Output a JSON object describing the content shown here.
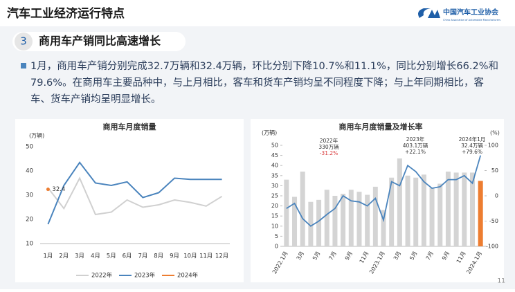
{
  "header": {
    "title": "汽车工业经济运行特点",
    "logo_cn": "中国汽车工业协会",
    "logo_en": "China Association of Automobile Manufacturers"
  },
  "section": {
    "number": "3",
    "title": "商用车产销同比高速增长"
  },
  "paragraph": "1月，商用车产销分别完成32.7万辆和32.4万辆，环比分别下降10.7%和11.1%，同比分别增长66.2%和79.6%。在商用车主要品种中，与上月相比，客车和货车产销均呈不同程度下降；与上年同期相比，客车、货车产销均呈明显增长。",
  "page_number": "11",
  "chart_data": [
    {
      "type": "line",
      "title": "商用车月度销量",
      "y_label": "(万辆)",
      "categories": [
        "1月",
        "2月",
        "3月",
        "4月",
        "5月",
        "6月",
        "7月",
        "8月",
        "9月",
        "10月",
        "11月",
        "12月"
      ],
      "series": [
        {
          "name": "2022年",
          "color": "#d0d0d0",
          "values": [
            33,
            24.5,
            37,
            22,
            23,
            28,
            25,
            26,
            28,
            27,
            25.5,
            29.5
          ]
        },
        {
          "name": "2023年",
          "color": "#4a84bd",
          "values": [
            18,
            34,
            43.5,
            35,
            34,
            35.5,
            29,
            31,
            37,
            36.5,
            36.5,
            36.5
          ]
        },
        {
          "name": "2024年",
          "color": "#ed7d31",
          "values": [
            32.4,
            null,
            null,
            null,
            null,
            null,
            null,
            null,
            null,
            null,
            null,
            null
          ]
        }
      ],
      "ylim": [
        10,
        50
      ],
      "yticks": [
        10,
        20,
        30,
        40,
        50
      ],
      "legend": "bottom"
    },
    {
      "type": "bar_line",
      "title": "商用车月度销量及增长率",
      "y_label": "(万辆)",
      "y2_label": "(%)",
      "categories": [
        "2022.1月",
        null,
        "3月",
        null,
        "5月",
        null,
        "7月",
        null,
        "9月",
        null,
        "11月",
        null,
        "2023.1月",
        null,
        "3月",
        null,
        "5月",
        null,
        "7月",
        null,
        "9月",
        null,
        "11月",
        null,
        "2024.1月"
      ],
      "series": [
        {
          "type": "bar",
          "color": "#d4d4d4",
          "colors": [
            "#d4d4d4",
            "#d4d4d4",
            "#d4d4d4",
            "#d4d4d4",
            "#d4d4d4",
            "#d4d4d4",
            "#d4d4d4",
            "#d4d4d4",
            "#d4d4d4",
            "#d4d4d4",
            "#d4d4d4",
            "#d4d4d4",
            "#d4d4d4",
            "#d4d4d4",
            "#d4d4d4",
            "#d4d4d4",
            "#d4d4d4",
            "#d4d4d4",
            "#d4d4d4",
            "#d4d4d4",
            "#d4d4d4",
            "#d4d4d4",
            "#d4d4d4",
            "#d4d4d4",
            "#ed7d31"
          ],
          "values": [
            33,
            24.5,
            37,
            22,
            23,
            28,
            25,
            26,
            28,
            27,
            25.5,
            29.5,
            18,
            34,
            43.5,
            35,
            34,
            35.5,
            29,
            31,
            37,
            36.5,
            36.5,
            36.5,
            32.4
          ]
        },
        {
          "type": "line",
          "axis": "y2",
          "color": "#4a84bd",
          "values": [
            -25,
            -15,
            -45,
            -60,
            -50,
            -37,
            -25,
            0,
            -10,
            -12,
            -20,
            -5,
            -48,
            28,
            20,
            60,
            48,
            28,
            15,
            18,
            32,
            32,
            40,
            25,
            80
          ]
        }
      ],
      "ylim": [
        0,
        50
      ],
      "yticks": [
        0,
        5,
        10,
        15,
        20,
        25,
        30,
        35,
        40,
        45,
        50
      ],
      "y2lim": [
        -100,
        100
      ],
      "y2ticks": [
        -100,
        -50,
        0,
        50,
        100
      ],
      "annotations": [
        {
          "lines": [
            "2022年",
            "330万辆",
            "-31.2%"
          ],
          "color": "#d9393b"
        },
        {
          "lines": [
            "2023年",
            "403.1万辆",
            "+22.1%"
          ],
          "color": "#333333"
        },
        {
          "lines": [
            "2024年1月",
            "32.4万辆",
            "+79.6%"
          ],
          "color": "#333333"
        }
      ]
    }
  ]
}
